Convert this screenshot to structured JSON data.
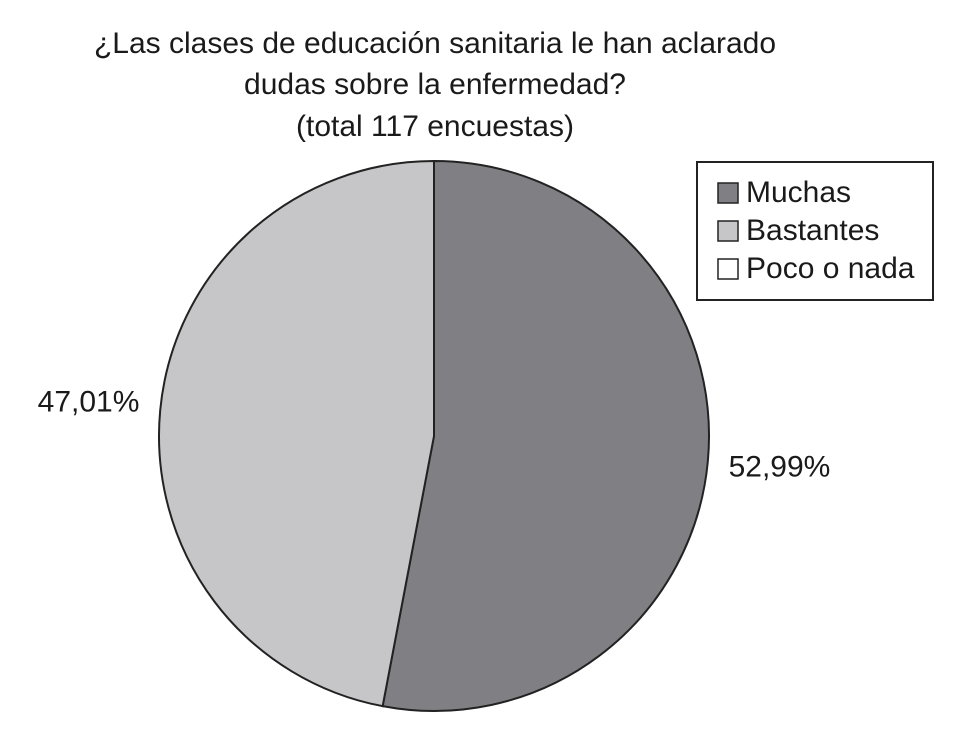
{
  "chart_data": {
    "type": "pie",
    "title": [
      "¿Las clases de educación sanitaria le han aclarado",
      "dudas sobre la enfermedad?",
      "(total 117 encuestas)"
    ],
    "categories": [
      "Muchas",
      "Bastantes",
      "Poco o nada"
    ],
    "values": [
      52.99,
      47.01,
      0
    ],
    "value_labels": [
      "52,99%",
      "47,01%",
      null
    ],
    "colors": [
      "#808084",
      "#c6c6c8",
      "#ffffff"
    ],
    "legend": "top-right"
  }
}
